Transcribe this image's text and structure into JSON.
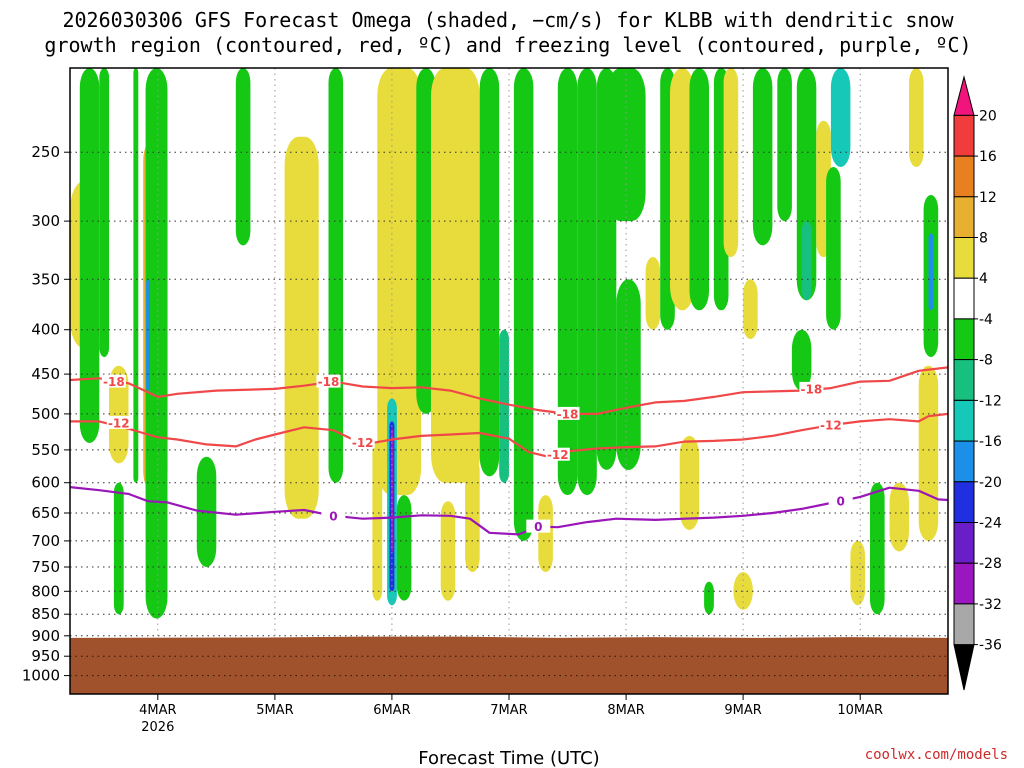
{
  "title_lines": [
    "2026030306 GFS Forecast Omega (shaded, −cm/s) for KLBB with dendritic snow",
    "growth region (contoured, red, ºC) and freezing level (contoured, purple, ºC)"
  ],
  "source": "coolwx.com/models",
  "colors": {
    "dgz": "#f04848",
    "freezing": "#9a16b8",
    "ground": "#a0522d",
    "frame": "#000000"
  },
  "chart_data": {
    "type": "heatmap",
    "title": "2026030306 GFS Forecast Omega (shaded, −cm/s) for KLBB with dendritic snow growth region (contoured, red, ºC) and freezing level (contoured, purple, ºC)",
    "xlabel": "Forecast Time (UTC)",
    "ylabel": "",
    "x_unit": "hours since 2026-03-03 06Z",
    "xlim": [
      0,
      180
    ],
    "ylim_hPa": [
      1050,
      200
    ],
    "x_ticks": [
      {
        "hours": 18,
        "label": "4MAR",
        "sub": "2026"
      },
      {
        "hours": 42,
        "label": "5MAR",
        "sub": ""
      },
      {
        "hours": 66,
        "label": "6MAR",
        "sub": ""
      },
      {
        "hours": 90,
        "label": "7MAR",
        "sub": ""
      },
      {
        "hours": 114,
        "label": "8MAR",
        "sub": ""
      },
      {
        "hours": 138,
        "label": "9MAR",
        "sub": ""
      },
      {
        "hours": 162,
        "label": "10MAR",
        "sub": ""
      }
    ],
    "y_ticks": [
      250,
      300,
      350,
      400,
      450,
      500,
      550,
      600,
      650,
      700,
      750,
      800,
      850,
      900,
      950,
      1000
    ],
    "colorbar": {
      "levels": [
        -36,
        -32,
        -28,
        -24,
        -20,
        -16,
        -12,
        -8,
        -4,
        4,
        8,
        12,
        16,
        20
      ],
      "colors": [
        "#000000",
        "#a8a8a8",
        "#9a16c0",
        "#6a1ec8",
        "#2030e0",
        "#1c90e8",
        "#16c8b8",
        "#18c080",
        "#14c814",
        "#ffffff",
        "#e8dc3c",
        "#e8b030",
        "#e88020",
        "#f03c3c",
        "#f0147c"
      ]
    },
    "dgz_contours": [
      {
        "label": "-18",
        "points": [
          [
            0,
            457
          ],
          [
            6,
            455
          ],
          [
            12,
            461
          ],
          [
            16,
            472
          ],
          [
            18,
            478
          ],
          [
            22,
            474
          ],
          [
            30,
            470
          ],
          [
            42,
            468
          ],
          [
            48,
            464
          ],
          [
            54,
            459
          ],
          [
            60,
            465
          ],
          [
            66,
            467
          ],
          [
            72,
            466
          ],
          [
            78,
            470
          ],
          [
            84,
            480
          ],
          [
            90,
            488
          ],
          [
            96,
            495
          ],
          [
            102,
            500
          ],
          [
            108,
            500
          ],
          [
            114,
            492
          ],
          [
            120,
            485
          ],
          [
            126,
            483
          ],
          [
            132,
            478
          ],
          [
            138,
            472
          ],
          [
            144,
            471
          ],
          [
            150,
            470
          ],
          [
            156,
            467
          ],
          [
            162,
            459
          ],
          [
            168,
            458
          ],
          [
            174,
            446
          ],
          [
            180,
            442
          ]
        ],
        "label_at": [
          [
            9,
            459
          ],
          [
            53,
            459
          ],
          [
            102,
            500
          ],
          [
            152,
            468
          ]
        ]
      },
      {
        "label": "-12",
        "points": [
          [
            0,
            510
          ],
          [
            6,
            510
          ],
          [
            12,
            520
          ],
          [
            16,
            528
          ],
          [
            18,
            532
          ],
          [
            22,
            535
          ],
          [
            28,
            542
          ],
          [
            34,
            545
          ],
          [
            38,
            535
          ],
          [
            42,
            528
          ],
          [
            48,
            518
          ],
          [
            54,
            522
          ],
          [
            58,
            535
          ],
          [
            62,
            540
          ],
          [
            66,
            535
          ],
          [
            72,
            530
          ],
          [
            78,
            528
          ],
          [
            84,
            526
          ],
          [
            90,
            534
          ],
          [
            94,
            553
          ],
          [
            98,
            560
          ],
          [
            102,
            552
          ],
          [
            108,
            548
          ],
          [
            114,
            546
          ],
          [
            120,
            545
          ],
          [
            126,
            538
          ],
          [
            132,
            537
          ],
          [
            138,
            535
          ],
          [
            144,
            530
          ],
          [
            150,
            522
          ],
          [
            156,
            515
          ],
          [
            162,
            510
          ],
          [
            168,
            507
          ],
          [
            174,
            510
          ],
          [
            176,
            503
          ],
          [
            180,
            500
          ]
        ],
        "label_at": [
          [
            10,
            512
          ],
          [
            60,
            539
          ],
          [
            100,
            557
          ],
          [
            156,
            515
          ]
        ]
      }
    ],
    "freezing_contour": {
      "label": "0",
      "points": [
        [
          0,
          607
        ],
        [
          6,
          612
        ],
        [
          12,
          618
        ],
        [
          16,
          630
        ],
        [
          20,
          632
        ],
        [
          26,
          646
        ],
        [
          34,
          653
        ],
        [
          42,
          648
        ],
        [
          48,
          645
        ],
        [
          54,
          655
        ],
        [
          60,
          660
        ],
        [
          66,
          658
        ],
        [
          72,
          654
        ],
        [
          78,
          655
        ],
        [
          82,
          660
        ],
        [
          86,
          685
        ],
        [
          92,
          688
        ],
        [
          96,
          674
        ],
        [
          100,
          675
        ],
        [
          106,
          666
        ],
        [
          112,
          660
        ],
        [
          120,
          662
        ],
        [
          126,
          660
        ],
        [
          132,
          658
        ],
        [
          138,
          655
        ],
        [
          144,
          650
        ],
        [
          150,
          643
        ],
        [
          156,
          633
        ],
        [
          162,
          623
        ],
        [
          168,
          608
        ],
        [
          174,
          613
        ],
        [
          178,
          627
        ],
        [
          180,
          628
        ]
      ],
      "label_at": [
        [
          54,
          655
        ],
        [
          96,
          674
        ],
        [
          158,
          630
        ]
      ]
    },
    "omega_cells": [
      {
        "t0": 16.5,
        "t1": 18.0,
        "p0": 270,
        "p1": 560,
        "v": 22
      },
      {
        "t0": 15.0,
        "t1": 20.0,
        "p0": 240,
        "p1": 620,
        "v": 10
      },
      {
        "t0": 17.5,
        "t1": 18.5,
        "p0": 610,
        "p1": 790,
        "v": -24
      },
      {
        "t0": 16.5,
        "t1": 19.5,
        "p0": 560,
        "p1": 850,
        "v": -14
      },
      {
        "t0": 15.5,
        "t1": 20.0,
        "p0": 200,
        "p1": 860,
        "v": -8
      },
      {
        "t0": 13.0,
        "t1": 14.0,
        "p0": 200,
        "p1": 600,
        "v": -6
      },
      {
        "t0": 15.6,
        "t1": 16.4,
        "p0": 350,
        "p1": 470,
        "v": -18
      },
      {
        "t0": 6.0,
        "t1": 8.0,
        "p0": 200,
        "p1": 430,
        "v": -6
      },
      {
        "t0": 0.0,
        "t1": 6.0,
        "p0": 270,
        "p1": 420,
        "v": 5
      },
      {
        "t0": 8.0,
        "t1": 12.0,
        "p0": 440,
        "p1": 570,
        "v": 6
      },
      {
        "t0": 2.0,
        "t1": 6.0,
        "p0": 200,
        "p1": 540,
        "v": -5
      },
      {
        "t0": 9.0,
        "t1": 11.0,
        "p0": 600,
        "p1": 850,
        "v": -6
      },
      {
        "t0": 26.0,
        "t1": 30.0,
        "p0": 560,
        "p1": 750,
        "v": -5
      },
      {
        "t0": 34.0,
        "t1": 37.0,
        "p0": 200,
        "p1": 320,
        "v": -6
      },
      {
        "t0": 45.0,
        "t1": 49.0,
        "p0": 290,
        "p1": 560,
        "v": 10
      },
      {
        "t0": 46.0,
        "t1": 48.0,
        "p0": 320,
        "p1": 430,
        "v": 14
      },
      {
        "t0": 44.0,
        "t1": 51.0,
        "p0": 240,
        "p1": 660,
        "v": 5
      },
      {
        "t0": 53.0,
        "t1": 56.0,
        "p0": 200,
        "p1": 600,
        "v": -6
      },
      {
        "t0": 62.0,
        "t1": 64.0,
        "p0": 540,
        "p1": 820,
        "v": 5
      },
      {
        "t0": 66.5,
        "t1": 68.5,
        "p0": 290,
        "p1": 520,
        "v": 22
      },
      {
        "t0": 64.5,
        "t1": 70.0,
        "p0": 240,
        "p1": 600,
        "v": 12
      },
      {
        "t0": 63.0,
        "t1": 72.0,
        "p0": 200,
        "p1": 620,
        "v": 5
      },
      {
        "t0": 65.0,
        "t1": 67.0,
        "p0": 480,
        "p1": 830,
        "v": -14
      },
      {
        "t0": 65.5,
        "t1": 66.5,
        "p0": 510,
        "p1": 800,
        "v": -22
      },
      {
        "t0": 65.8,
        "t1": 66.3,
        "p0": 520,
        "p1": 720,
        "v": -30
      },
      {
        "t0": 67.0,
        "t1": 70.0,
        "p0": 620,
        "p1": 820,
        "v": -8
      },
      {
        "t0": 71.0,
        "t1": 75.0,
        "p0": 200,
        "p1": 500,
        "v": -6
      },
      {
        "t0": 78.0,
        "t1": 80.5,
        "p0": 270,
        "p1": 420,
        "v": 20
      },
      {
        "t0": 76.5,
        "t1": 82.0,
        "p0": 240,
        "p1": 520,
        "v": 10
      },
      {
        "t0": 74.0,
        "t1": 84.0,
        "p0": 200,
        "p1": 600,
        "v": 5
      },
      {
        "t0": 81.0,
        "t1": 84.0,
        "p0": 560,
        "p1": 760,
        "v": 6
      },
      {
        "t0": 76.0,
        "t1": 79.0,
        "p0": 630,
        "p1": 820,
        "v": 5
      },
      {
        "t0": 84.0,
        "t1": 88.0,
        "p0": 200,
        "p1": 590,
        "v": -6
      },
      {
        "t0": 88.0,
        "t1": 90.0,
        "p0": 400,
        "p1": 600,
        "v": -12
      },
      {
        "t0": 91.0,
        "t1": 95.0,
        "p0": 200,
        "p1": 700,
        "v": -6
      },
      {
        "t0": 96.0,
        "t1": 99.0,
        "p0": 620,
        "p1": 760,
        "v": 6
      },
      {
        "t0": 100.0,
        "t1": 104.0,
        "p0": 200,
        "p1": 620,
        "v": -6
      },
      {
        "t0": 104.0,
        "t1": 108.0,
        "p0": 200,
        "p1": 620,
        "v": -5
      },
      {
        "t0": 108.0,
        "t1": 112.0,
        "p0": 200,
        "p1": 580,
        "v": -6
      },
      {
        "t0": 110.0,
        "t1": 118.0,
        "p0": 200,
        "p1": 300,
        "v": -6
      },
      {
        "t0": 112.0,
        "t1": 117.0,
        "p0": 350,
        "p1": 580,
        "v": -5
      },
      {
        "t0": 118.0,
        "t1": 121.0,
        "p0": 330,
        "p1": 400,
        "v": 5
      },
      {
        "t0": 121.0,
        "t1": 124.0,
        "p0": 200,
        "p1": 400,
        "v": -6
      },
      {
        "t0": 124.0,
        "t1": 127.0,
        "p0": 220,
        "p1": 330,
        "v": 13
      },
      {
        "t0": 123.0,
        "t1": 128.0,
        "p0": 200,
        "p1": 380,
        "v": 5
      },
      {
        "t0": 127.0,
        "t1": 131.0,
        "p0": 200,
        "p1": 380,
        "v": -6
      },
      {
        "t0": 125.0,
        "t1": 129.0,
        "p0": 530,
        "p1": 680,
        "v": 6
      },
      {
        "t0": 130.0,
        "t1": 132.0,
        "p0": 780,
        "p1": 850,
        "v": -7
      },
      {
        "t0": 132.0,
        "t1": 135.0,
        "p0": 200,
        "p1": 380,
        "v": -7
      },
      {
        "t0": 134.0,
        "t1": 137.0,
        "p0": 200,
        "p1": 330,
        "v": 5
      },
      {
        "t0": 138.0,
        "t1": 141.0,
        "p0": 350,
        "p1": 410,
        "v": 6
      },
      {
        "t0": 140.0,
        "t1": 144.0,
        "p0": 200,
        "p1": 320,
        "v": -6
      },
      {
        "t0": 136.0,
        "t1": 140.0,
        "p0": 760,
        "p1": 840,
        "v": 5
      },
      {
        "t0": 145.0,
        "t1": 148.0,
        "p0": 200,
        "p1": 300,
        "v": -6
      },
      {
        "t0": 149.0,
        "t1": 153.0,
        "p0": 200,
        "p1": 370,
        "v": -7
      },
      {
        "t0": 150.0,
        "t1": 152.0,
        "p0": 300,
        "p1": 370,
        "v": -12
      },
      {
        "t0": 148.0,
        "t1": 152.0,
        "p0": 400,
        "p1": 470,
        "v": -6
      },
      {
        "t0": 153.0,
        "t1": 156.0,
        "p0": 230,
        "p1": 330,
        "v": 5
      },
      {
        "t0": 156.0,
        "t1": 160.0,
        "p0": 200,
        "p1": 260,
        "v": -14
      },
      {
        "t0": 155.0,
        "t1": 158.0,
        "p0": 260,
        "p1": 400,
        "v": -6
      },
      {
        "t0": 160.0,
        "t1": 163.0,
        "p0": 700,
        "p1": 830,
        "v": 5
      },
      {
        "t0": 164.0,
        "t1": 167.0,
        "p0": 600,
        "p1": 850,
        "v": -7
      },
      {
        "t0": 168.0,
        "t1": 172.0,
        "p0": 600,
        "p1": 720,
        "v": 5
      },
      {
        "t0": 172.0,
        "t1": 175.0,
        "p0": 200,
        "p1": 260,
        "v": 5
      },
      {
        "t0": 175.0,
        "t1": 178.0,
        "p0": 280,
        "p1": 430,
        "v": -8
      },
      {
        "t0": 176.0,
        "t1": 177.0,
        "p0": 310,
        "p1": 380,
        "v": -20
      },
      {
        "t0": 174.5,
        "t1": 177.5,
        "p0": 460,
        "p1": 650,
        "v": 14
      },
      {
        "t0": 174.0,
        "t1": 178.0,
        "p0": 440,
        "p1": 700,
        "v": 5
      }
    ],
    "ground_surface": [
      [
        0,
        905
      ],
      [
        40,
        904
      ],
      [
        60,
        902
      ],
      [
        80,
        902
      ],
      [
        100,
        905
      ],
      [
        120,
        903
      ],
      [
        140,
        905
      ],
      [
        160,
        903
      ],
      [
        180,
        905
      ]
    ]
  }
}
